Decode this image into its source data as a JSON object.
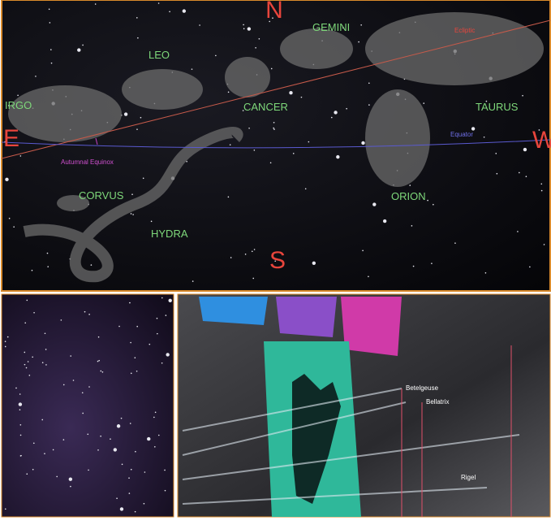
{
  "sky_map": {
    "directions": {
      "north": "N",
      "south": "S",
      "east": "E",
      "west": "W"
    },
    "constellations": [
      "GEMINI",
      "LEO",
      "CANCER",
      "IRGO",
      "TAURUS",
      "ORION",
      "CORVUS",
      "HYDRA"
    ],
    "lines": {
      "ecliptic": "Ecliptic",
      "equator": "Equator"
    },
    "annotation": "Autumnal Equinox"
  },
  "exhibit": {
    "star_labels": [
      "Betelgeuse",
      "Bellatrix",
      "Rigel"
    ]
  }
}
